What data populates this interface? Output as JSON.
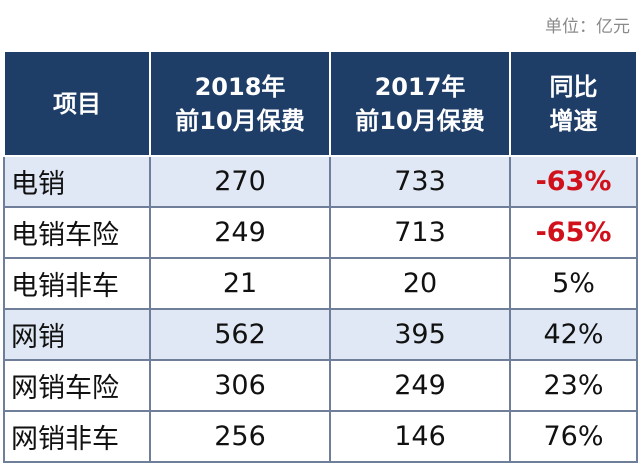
{
  "unit_note": "单位：亿元",
  "header": {
    "col1": "项目",
    "col2_line1": "2018年",
    "col2_line2": "前10月保费",
    "col3_line1": "2017年",
    "col3_line2": "前10月保费",
    "col4_line1": "同比",
    "col4_line2": "增速"
  },
  "rows": [
    {
      "item": "电销",
      "y2018": "270",
      "y2017": "733",
      "growth": "-63%"
    },
    {
      "item": "电销车险",
      "y2018": "249",
      "y2017": "713",
      "growth": "-65%"
    },
    {
      "item": "电销非车",
      "y2018": "21",
      "y2017": "20",
      "growth": "5%"
    },
    {
      "item": "网销",
      "y2018": "562",
      "y2017": "395",
      "growth": "42%"
    },
    {
      "item": "网销车险",
      "y2018": "306",
      "y2017": "249",
      "growth": "23%"
    },
    {
      "item": "网销非车",
      "y2018": "256",
      "y2017": "146",
      "growth": "76%"
    }
  ],
  "colors": {
    "header_bg": "#1e3d67",
    "highlight_bg": "#dfe8f4",
    "negative_text": "#d0101a"
  }
}
